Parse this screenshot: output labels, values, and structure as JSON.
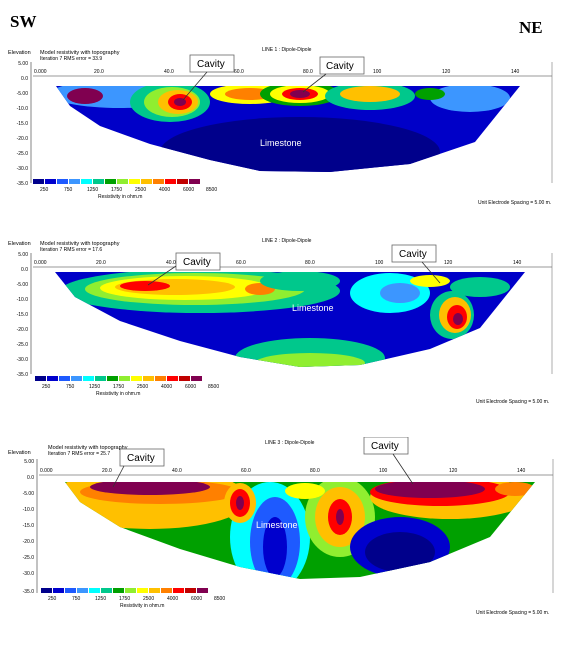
{
  "corners": {
    "left": "SW",
    "right": "NE"
  },
  "legend": {
    "values": [
      "250",
      "750",
      "1250",
      "1750",
      "2500",
      "4000",
      "6000",
      "8500"
    ],
    "caption": "Resistivity in ohm.m",
    "colors": [
      "#00008b",
      "#0000cd",
      "#1e5aff",
      "#3c96ff",
      "#00ffff",
      "#00c88c",
      "#00a000",
      "#90ee30",
      "#ffff00",
      "#ffc000",
      "#ff8000",
      "#ff0000",
      "#c00000",
      "#800050"
    ]
  },
  "axes": {
    "x_ticks": [
      "0.000",
      "20.0",
      "40.0",
      "60.0",
      "80.0",
      "100",
      "120",
      "140"
    ],
    "y_ticks": [
      "5.00",
      "0.0",
      "-5.00",
      "-10.0",
      "-15.0",
      "-20.0",
      "-25.0",
      "-30.0",
      "-35.0"
    ]
  },
  "panels": [
    {
      "title": "LINE 1 : Dipole-Dipole",
      "elevation": "Elevation",
      "model_label": "Model resistivity with topography",
      "iteration": "Iteration 7 RMS error = 33.9",
      "spacing": "Unit Electrode Spacing = 5.00 m.",
      "rock_label": "Limestone",
      "callouts": [
        "Cavity",
        "Cavity"
      ]
    },
    {
      "title": "LINE 2 : Dipole-Dipole",
      "elevation": "Elevation",
      "model_label": "Model resistivity with topography",
      "iteration": "Iteration 7 RMS error = 17.6",
      "spacing": "Unit Electrode Spacing = 5.00 m.",
      "rock_label": "Limestone",
      "callouts": [
        "Cavity",
        "Cavity"
      ]
    },
    {
      "title": "LINE 3 : Dipole-Dipole",
      "elevation": "Elevation",
      "model_label": "Model resistivity with topography",
      "iteration": "Iteration 7 RMS error = 25.7",
      "spacing": "Unit Electrode Spacing = 5.00 m.",
      "rock_label": "Limestone",
      "callouts": [
        "Cavity",
        "Cavity"
      ]
    }
  ]
}
